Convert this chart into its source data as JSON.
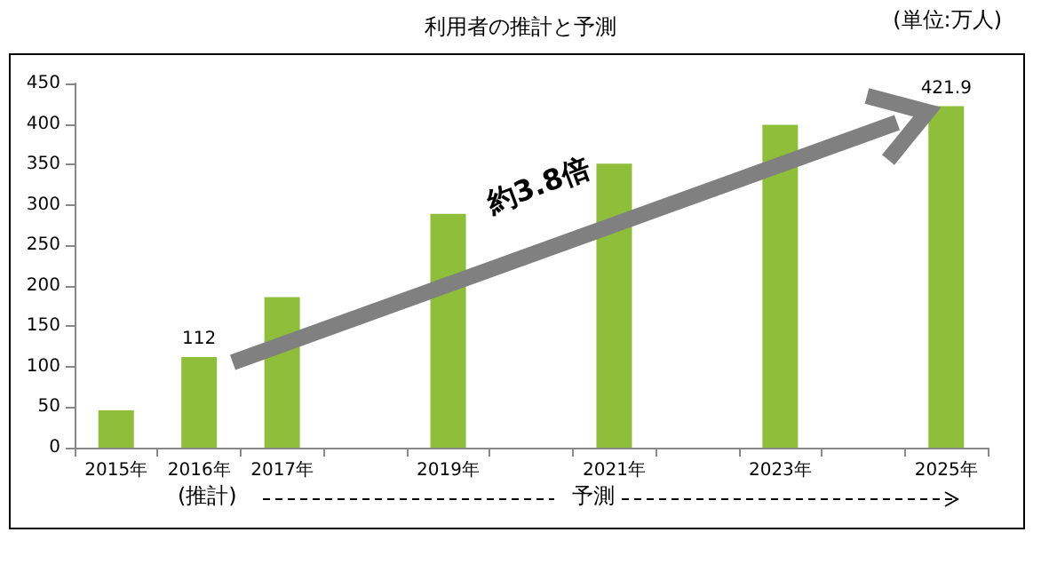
{
  "chart_data": {
    "type": "bar",
    "title": "利用者の推計と予測",
    "categories": [
      "2015年",
      "2016年",
      "2017年",
      null,
      "2019年",
      null,
      "2021年",
      null,
      "2023年",
      null,
      "2025年"
    ],
    "values": [
      46,
      112,
      186,
      null,
      289,
      null,
      351,
      null,
      399,
      null,
      421.9
    ],
    "value_labels": [
      null,
      "112",
      null,
      null,
      null,
      null,
      null,
      null,
      null,
      null,
      "421.9"
    ],
    "color": "#8fbf3a",
    "ylim": [
      0,
      450
    ],
    "yticks": [
      0,
      50,
      100,
      150,
      200,
      250,
      300,
      350,
      400,
      450
    ],
    "grid": false,
    "annotations": [
      "(単位:万人)",
      "約3.8倍",
      "(推計)",
      "予測"
    ]
  }
}
